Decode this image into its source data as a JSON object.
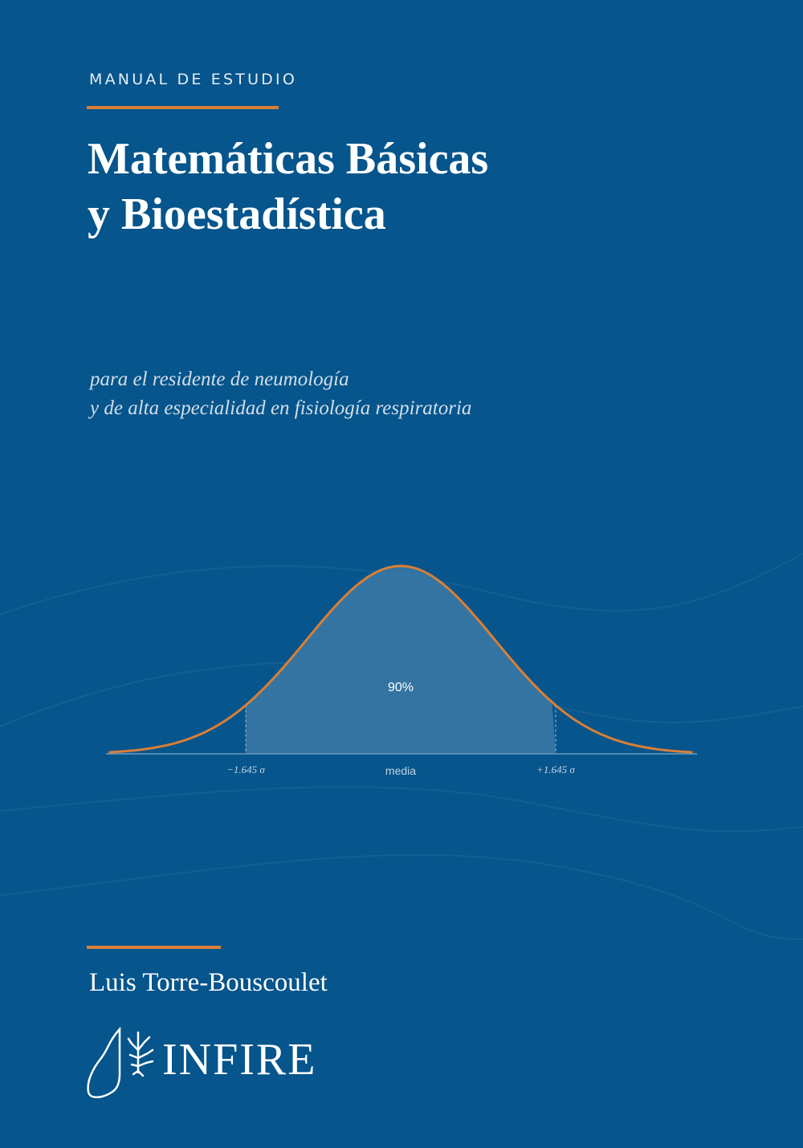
{
  "cover": {
    "eyebrow": "MANUAL DE ESTUDIO",
    "title_lines": [
      "Matemáticas Básicas",
      "y Bioestadística"
    ],
    "subtitle_lines": [
      "para el residente de neumología",
      "y de alta especialidad en fisiología respiratoria"
    ],
    "author": "Luis Torre-Bouscoulet",
    "publisher": "INFIRE"
  },
  "chart_data": {
    "type": "area",
    "distribution": "normal",
    "shaded_label": "90%",
    "tick_labels": [
      "−1.645 σ",
      "media",
      "+1.645 σ"
    ],
    "shaded_range_sigma": [
      -1.645,
      1.645
    ]
  },
  "colors": {
    "background": "#06558c",
    "accent": "#d97f36",
    "curve_fill": "#3c7aa6",
    "text": "#ffffff"
  }
}
